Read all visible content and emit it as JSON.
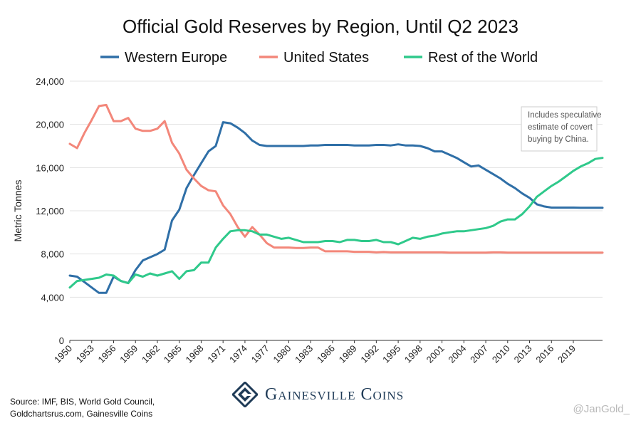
{
  "chart_data": {
    "type": "line",
    "title": "Official Gold Reserves by Region, Until Q2 2023",
    "ylabel": "Metric Tonnes",
    "xlabel": "",
    "ylim": [
      0,
      24000
    ],
    "xlim": [
      1950,
      2023
    ],
    "y_ticks": [
      0,
      4000,
      8000,
      12000,
      16000,
      20000,
      24000
    ],
    "y_tick_labels": [
      "0",
      "4,000",
      "8,000",
      "12,000",
      "16,000",
      "20,000",
      "24,000"
    ],
    "x_ticks": [
      1950,
      1953,
      1956,
      1959,
      1962,
      1965,
      1968,
      1971,
      1974,
      1977,
      1980,
      1983,
      1986,
      1989,
      1992,
      1995,
      1998,
      2001,
      2004,
      2007,
      2010,
      2013,
      2016,
      2019
    ],
    "x_tick_labels": [
      "1950",
      "1953",
      "1956",
      "1959",
      "1962",
      "1965",
      "1968",
      "1971",
      "1974",
      "1977",
      "1980",
      "1983",
      "1986",
      "1989",
      "1992",
      "1995",
      "1998",
      "2001",
      "2004",
      "2007",
      "2010",
      "2013",
      "2016",
      "2019"
    ],
    "grid": "horizontal",
    "legend_position": "top",
    "x": [
      1950,
      1951,
      1952,
      1953,
      1954,
      1955,
      1956,
      1957,
      1958,
      1959,
      1960,
      1961,
      1962,
      1963,
      1964,
      1965,
      1966,
      1967,
      1968,
      1969,
      1970,
      1971,
      1972,
      1973,
      1974,
      1975,
      1976,
      1977,
      1978,
      1979,
      1980,
      1981,
      1982,
      1983,
      1984,
      1985,
      1986,
      1987,
      1988,
      1989,
      1990,
      1991,
      1992,
      1993,
      1994,
      1995,
      1996,
      1997,
      1998,
      1999,
      2000,
      2001,
      2002,
      2003,
      2004,
      2005,
      2006,
      2007,
      2008,
      2009,
      2010,
      2011,
      2012,
      2013,
      2014,
      2015,
      2016,
      2017,
      2018,
      2019,
      2020,
      2021,
      2022,
      2023
    ],
    "series": [
      {
        "name": "Western Europe",
        "color": "#2f6fa7",
        "values": [
          6000,
          5900,
          5400,
          4900,
          4400,
          4400,
          5900,
          5500,
          5300,
          6500,
          7400,
          7700,
          8000,
          8400,
          11100,
          12100,
          14100,
          15300,
          16400,
          17500,
          18000,
          20200,
          20100,
          19700,
          19200,
          18500,
          18100,
          18000,
          18000,
          18000,
          18000,
          18000,
          18000,
          18050,
          18050,
          18100,
          18100,
          18100,
          18100,
          18050,
          18050,
          18050,
          18100,
          18100,
          18050,
          18150,
          18050,
          18050,
          18000,
          17800,
          17500,
          17500,
          17200,
          16900,
          16500,
          16100,
          16200,
          15800,
          15400,
          15000,
          14500,
          14100,
          13600,
          13200,
          12600,
          12400,
          12300,
          12300,
          12300,
          12300,
          12280,
          12280,
          12280,
          12280
        ]
      },
      {
        "name": "United States",
        "color": "#f3877a",
        "values": [
          18200,
          17800,
          19200,
          20400,
          21700,
          21800,
          20300,
          20300,
          20600,
          19600,
          19400,
          19400,
          19600,
          20300,
          18300,
          17300,
          15800,
          15000,
          14300,
          13900,
          13800,
          12500,
          11700,
          10500,
          9600,
          10500,
          9800,
          9000,
          8600,
          8600,
          8600,
          8550,
          8550,
          8600,
          8600,
          8250,
          8250,
          8250,
          8250,
          8200,
          8200,
          8200,
          8150,
          8180,
          8150,
          8150,
          8150,
          8150,
          8150,
          8150,
          8150,
          8150,
          8120,
          8120,
          8120,
          8120,
          8120,
          8120,
          8150,
          8150,
          8130,
          8130,
          8130,
          8130,
          8130,
          8130,
          8130,
          8130,
          8130,
          8130,
          8130,
          8130,
          8130,
          8130
        ]
      },
      {
        "name": "Rest of the World",
        "color": "#2fc98b",
        "values": [
          4900,
          5500,
          5600,
          5700,
          5800,
          6100,
          6000,
          5500,
          5300,
          6100,
          5900,
          6200,
          6000,
          6200,
          6400,
          5700,
          6400,
          6500,
          7200,
          7200,
          8600,
          9400,
          10100,
          10200,
          10200,
          10100,
          9800,
          9800,
          9600,
          9400,
          9500,
          9300,
          9100,
          9100,
          9100,
          9200,
          9200,
          9100,
          9300,
          9300,
          9200,
          9200,
          9300,
          9100,
          9100,
          8900,
          9200,
          9500,
          9400,
          9600,
          9700,
          9900,
          10000,
          10100,
          10100,
          10200,
          10300,
          10400,
          10600,
          11000,
          11200,
          11200,
          11700,
          12400,
          13300,
          13800,
          14300,
          14700,
          15200,
          15700,
          16100,
          16400,
          16800,
          16900
        ]
      }
    ],
    "annotation": "Includes speculative estimate of covert buying by China."
  },
  "note_lines": [
    "Includes speculative",
    "estimate of covert",
    "buying by China."
  ],
  "source_lines": [
    "Source: IMF, BIS, World Gold Council,",
    "Goldchartsrus.com, Gainesville Coins"
  ],
  "logo_text": "Gainesville Coins",
  "logo_icon": "gainesville-coins-logo-icon",
  "handle": "@JanGold_",
  "colors": {
    "grid": "#e3e3e3",
    "axis": "#333333",
    "note_border": "#cccccc",
    "logo": "#1f3b57"
  }
}
